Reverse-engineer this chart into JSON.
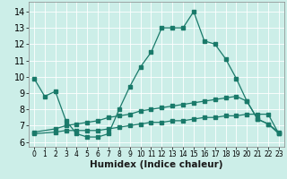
{
  "xlabel": "Humidex (Indice chaleur)",
  "bg_color": "#cceee8",
  "line_color": "#1a7a6a",
  "grid_color": "#ffffff",
  "x_ticks": [
    0,
    1,
    2,
    3,
    4,
    5,
    6,
    7,
    8,
    9,
    10,
    11,
    12,
    13,
    14,
    15,
    16,
    17,
    18,
    19,
    20,
    21,
    22,
    23
  ],
  "y_ticks": [
    6,
    7,
    8,
    9,
    10,
    11,
    12,
    13,
    14
  ],
  "ylim": [
    5.7,
    14.6
  ],
  "xlim": [
    -0.5,
    23.5
  ],
  "line1_x": [
    0,
    1,
    2,
    3,
    4,
    5,
    6,
    7,
    8,
    9,
    10,
    11,
    12,
    13,
    14,
    15,
    16,
    17,
    18,
    19,
    20,
    21,
    22,
    23
  ],
  "line1_y": [
    9.9,
    8.8,
    9.1,
    7.3,
    6.5,
    6.3,
    6.3,
    6.5,
    8.0,
    9.4,
    10.6,
    11.5,
    13.0,
    13.0,
    13.0,
    14.0,
    12.2,
    12.0,
    11.1,
    9.9,
    8.5,
    7.4,
    7.1,
    6.5
  ],
  "line2_x": [
    0,
    2,
    3,
    4,
    5,
    6,
    7,
    8,
    9,
    10,
    11,
    12,
    13,
    14,
    15,
    16,
    17,
    18,
    19,
    20,
    21,
    22,
    23
  ],
  "line2_y": [
    6.6,
    6.8,
    7.0,
    7.1,
    7.2,
    7.3,
    7.5,
    7.6,
    7.7,
    7.9,
    8.0,
    8.1,
    8.2,
    8.3,
    8.4,
    8.5,
    8.6,
    8.7,
    8.8,
    8.5,
    7.4,
    7.1,
    6.6
  ],
  "line3_x": [
    0,
    2,
    3,
    4,
    5,
    6,
    7,
    8,
    9,
    10,
    11,
    12,
    13,
    14,
    15,
    16,
    17,
    18,
    19,
    20,
    21,
    22,
    23
  ],
  "line3_y": [
    6.5,
    6.6,
    6.7,
    6.7,
    6.7,
    6.7,
    6.8,
    6.9,
    7.0,
    7.1,
    7.2,
    7.2,
    7.3,
    7.3,
    7.4,
    7.5,
    7.5,
    7.6,
    7.6,
    7.7,
    7.7,
    7.7,
    6.5
  ],
  "xlabel_fontsize": 7.5,
  "tick_fontsize_x": 5.5,
  "tick_fontsize_y": 7.0,
  "marker_size": 2.2,
  "line_width": 0.9
}
